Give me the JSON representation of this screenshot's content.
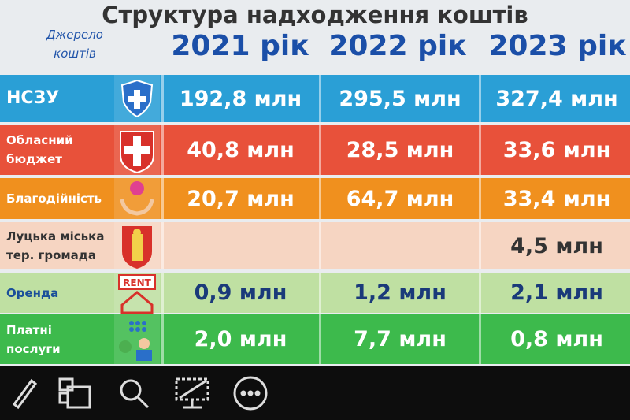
{
  "header": {
    "title": "Структура надходження коштів",
    "source_label": [
      "Джерело",
      "коштів"
    ],
    "years": [
      "2021 рік",
      "2022 рік",
      "2023 рік"
    ]
  },
  "table": {
    "rows": [
      {
        "label": [
          "НСЗУ"
        ],
        "values": [
          "192,8 млн",
          "295,5 млн",
          "327,4 млн"
        ]
      },
      {
        "label": [
          "Обласний",
          "бюджет"
        ],
        "values": [
          "40,8 млн",
          "28,5 млн",
          "33,6 млн"
        ]
      },
      {
        "label": [
          "Благодійність"
        ],
        "values": [
          "20,7 млн",
          "64,7 млн",
          "33,4 млн"
        ]
      },
      {
        "label": [
          "Луцька міська",
          "тер. громада"
        ],
        "values": [
          null,
          null,
          "4,5 млн"
        ]
      },
      {
        "label": [
          "Оренда"
        ],
        "icon_text": "RENT",
        "values": [
          "0,9 млн",
          "1,2 млн",
          "2,1 млн"
        ]
      },
      {
        "label": [
          "Платні",
          "послуги"
        ],
        "values": [
          "2,0 млн",
          "7,7 млн",
          "0,8 млн"
        ]
      }
    ]
  }
}
